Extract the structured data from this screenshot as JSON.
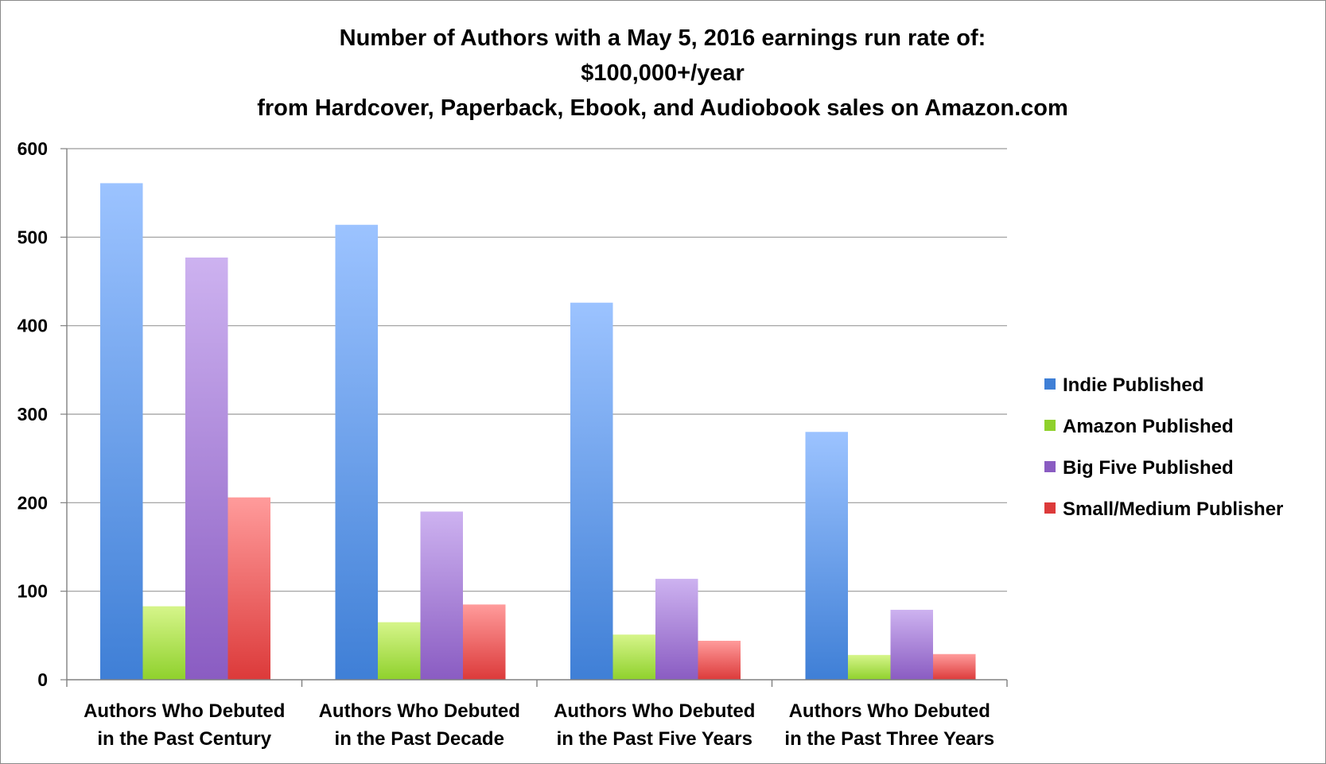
{
  "chart_data": {
    "type": "bar",
    "title_lines": [
      "Number of Authors with a May 5, 2016 earnings run rate of:",
      "$100,000+/year",
      "from Hardcover, Paperback, Ebook, and Audiobook sales on Amazon.com"
    ],
    "categories": [
      [
        "Authors Who Debuted",
        "in the Past Century"
      ],
      [
        "Authors Who Debuted",
        "in the Past Decade"
      ],
      [
        "Authors Who Debuted",
        "in the Past Five Years"
      ],
      [
        "Authors Who Debuted",
        "in the Past Three Years"
      ]
    ],
    "series": [
      {
        "name": "Indie Published",
        "values": [
          561,
          514,
          426,
          280
        ],
        "color_top": "#9cc3ff",
        "color_bottom": "#3f7fd6",
        "legend_color": "#3f7fd6"
      },
      {
        "name": "Amazon Published",
        "values": [
          83,
          65,
          51,
          28
        ],
        "color_top": "#d6f58a",
        "color_bottom": "#8fd12c",
        "legend_color": "#8fd12c"
      },
      {
        "name": "Big Five Published",
        "values": [
          477,
          190,
          114,
          79
        ],
        "color_top": "#cdb2f0",
        "color_bottom": "#8a5cc2",
        "legend_color": "#8a5cc2"
      },
      {
        "name": "Small/Medium Publisher",
        "values": [
          206,
          85,
          44,
          29
        ],
        "color_top": "#ff9b9b",
        "color_bottom": "#dc3a3a",
        "legend_color": "#dc3a3a"
      }
    ],
    "yticks": [
      "0",
      "100",
      "200",
      "300",
      "400",
      "500",
      "600"
    ],
    "ylim": [
      0,
      600
    ],
    "grid": true,
    "legend_position": "right"
  }
}
